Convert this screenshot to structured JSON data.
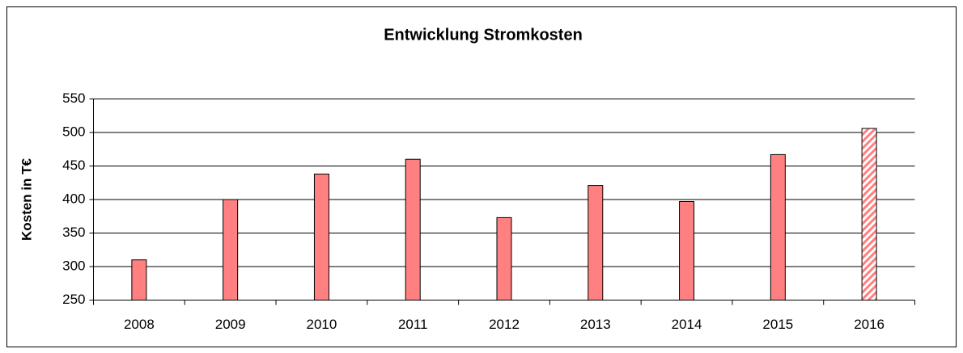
{
  "chart_data": {
    "type": "bar",
    "title": "Entwicklung Stromkosten",
    "y_label": "Kosten in T€",
    "categories": [
      "2008",
      "2009",
      "2010",
      "2011",
      "2012",
      "2013",
      "2014",
      "2015",
      "2016"
    ],
    "values": [
      310,
      400,
      438,
      460,
      373,
      421,
      397,
      467,
      506
    ],
    "hatch": [
      false,
      false,
      false,
      false,
      false,
      false,
      false,
      false,
      true
    ],
    "color": "#ff8080",
    "ylim": [
      250,
      550
    ],
    "yticks": [
      250,
      300,
      350,
      400,
      450,
      500,
      550
    ],
    "grid": true
  }
}
